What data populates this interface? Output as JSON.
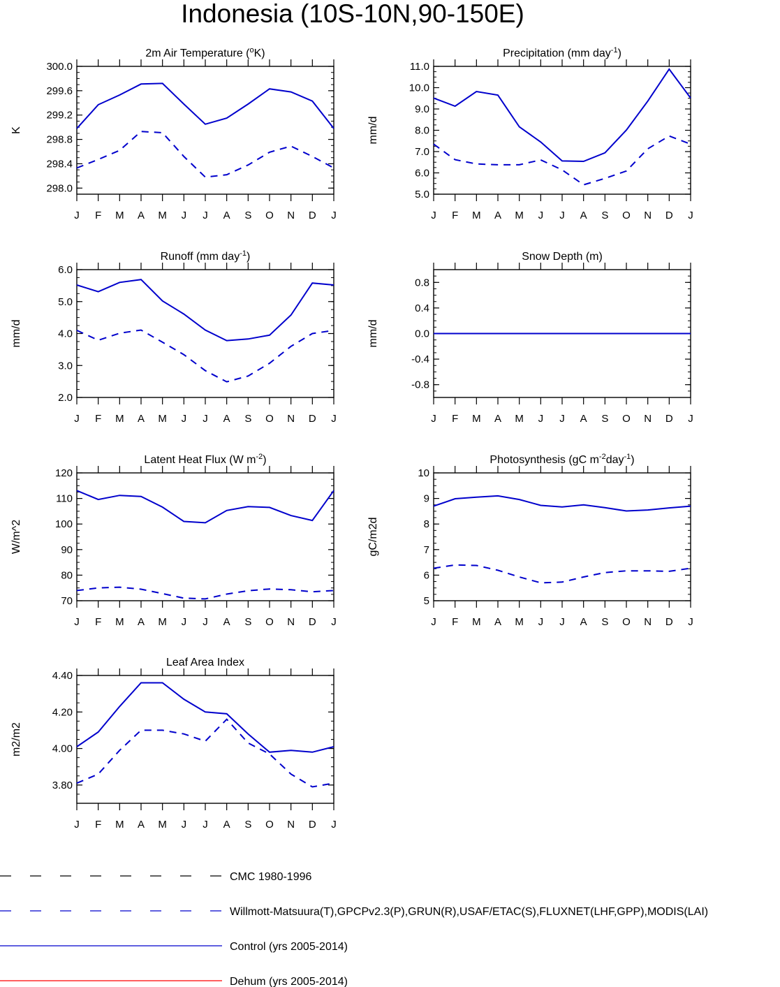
{
  "title": "Indonesia (10S-10N,90-150E)",
  "colors": {
    "axis": "#000000",
    "series": "#0000cc",
    "control": "#0000cc",
    "dehum": "#ff0000",
    "cmc": "#000000"
  },
  "chart_data": [
    {
      "type": "line",
      "title_main": "2m Air Temperature (",
      "title_sup": "o",
      "title_rest": "K)",
      "ylabel": "K",
      "categories": [
        "J",
        "F",
        "M",
        "A",
        "M",
        "J",
        "J",
        "A",
        "S",
        "O",
        "N",
        "D",
        "J"
      ],
      "ylim": [
        297.9,
        300.0
      ],
      "yticks": [
        "298.0",
        "298.4",
        "298.8",
        "299.2",
        "299.6",
        "300.0"
      ],
      "series": [
        {
          "name": "Control (yrs 2005-2014)",
          "style": "solid",
          "values": [
            298.98,
            299.37,
            299.53,
            299.71,
            299.72,
            299.38,
            299.05,
            299.15,
            299.38,
            299.63,
            299.58,
            299.43,
            298.98
          ]
        },
        {
          "name": "Willmott-Matsuura(T)",
          "style": "dashed",
          "values": [
            298.33,
            298.47,
            298.62,
            298.93,
            298.91,
            298.52,
            298.18,
            298.22,
            298.38,
            298.59,
            298.69,
            298.52,
            298.33
          ]
        }
      ]
    },
    {
      "type": "line",
      "title_main": "Precipitation (mm day",
      "title_sup": "-1",
      "title_rest": ")",
      "ylabel": "mm/d",
      "categories": [
        "J",
        "F",
        "M",
        "A",
        "M",
        "J",
        "J",
        "A",
        "S",
        "O",
        "N",
        "D",
        "J"
      ],
      "ylim": [
        5.0,
        11.0
      ],
      "yticks": [
        "5.0",
        "6.0",
        "7.0",
        "8.0",
        "9.0",
        "10.0",
        "11.0"
      ],
      "series": [
        {
          "name": "Control (yrs 2005-2014)",
          "style": "solid",
          "values": [
            9.51,
            9.13,
            9.82,
            9.65,
            8.16,
            7.45,
            6.56,
            6.54,
            6.94,
            8.01,
            9.37,
            10.87,
            9.51
          ]
        },
        {
          "name": "GPCPv2.3(P)",
          "style": "dashed",
          "values": [
            7.35,
            6.62,
            6.42,
            6.38,
            6.38,
            6.61,
            6.14,
            5.44,
            5.74,
            6.09,
            7.13,
            7.73,
            7.35
          ]
        }
      ]
    },
    {
      "type": "line",
      "title_main": "Runoff (mm day",
      "title_sup": "-1",
      "title_rest": ")",
      "ylabel": "mm/d",
      "categories": [
        "J",
        "F",
        "M",
        "A",
        "M",
        "J",
        "J",
        "A",
        "S",
        "O",
        "N",
        "D",
        "J"
      ],
      "ylim": [
        2.0,
        6.0
      ],
      "yticks": [
        "2.0",
        "3.0",
        "4.0",
        "5.0",
        "6.0"
      ],
      "series": [
        {
          "name": "Control (yrs 2005-2014)",
          "style": "solid",
          "values": [
            5.52,
            5.31,
            5.6,
            5.69,
            5.02,
            4.61,
            4.11,
            3.78,
            3.83,
            3.95,
            4.58,
            5.58,
            5.52
          ]
        },
        {
          "name": "GRUN(R)",
          "style": "dashed",
          "values": [
            4.1,
            3.79,
            4.01,
            4.11,
            3.73,
            3.34,
            2.84,
            2.49,
            2.67,
            3.07,
            3.6,
            4.0,
            4.1
          ]
        }
      ]
    },
    {
      "type": "line",
      "title_main": "Snow Depth (m)",
      "title_sup": "",
      "title_rest": "",
      "ylabel": "mm/d",
      "categories": [
        "J",
        "F",
        "M",
        "A",
        "M",
        "J",
        "J",
        "A",
        "S",
        "O",
        "N",
        "D",
        "J"
      ],
      "ylim": [
        -1.0,
        1.0
      ],
      "yticks": [
        "-0.8",
        "-0.4",
        "0.0",
        "0.4",
        "0.8"
      ],
      "series": [
        {
          "name": "Control (yrs 2005-2014)",
          "style": "solid",
          "values": [
            0,
            0,
            0,
            0,
            0,
            0,
            0,
            0,
            0,
            0,
            0,
            0,
            0
          ]
        },
        {
          "name": "USAF/ETAC(S)",
          "style": "dashed",
          "values": [
            0,
            0,
            0,
            0,
            0,
            0,
            0,
            0,
            0,
            0,
            0,
            0,
            0
          ]
        }
      ]
    },
    {
      "type": "line",
      "title_main": "Latent Heat Flux (W m",
      "title_sup": "-2",
      "title_rest": ")",
      "ylabel": "W/m^2",
      "categories": [
        "J",
        "F",
        "M",
        "A",
        "M",
        "J",
        "J",
        "A",
        "S",
        "O",
        "N",
        "D",
        "J"
      ],
      "ylim": [
        70,
        120
      ],
      "yticks": [
        "70",
        "80",
        "90",
        "100",
        "110",
        "120"
      ],
      "series": [
        {
          "name": "Control (yrs 2005-2014)",
          "style": "solid",
          "values": [
            113.1,
            109.6,
            111.2,
            110.8,
            106.6,
            101.0,
            100.5,
            105.3,
            106.8,
            106.5,
            103.3,
            101.4,
            113.1
          ]
        },
        {
          "name": "FLUXNET(LHF)",
          "style": "dashed",
          "values": [
            74.0,
            75.0,
            75.3,
            74.5,
            72.8,
            71.0,
            70.7,
            72.6,
            73.9,
            74.6,
            74.3,
            73.5,
            74.0
          ]
        }
      ]
    },
    {
      "type": "line",
      "title_main": "Photosynthesis (gC m",
      "title_sup": "-2",
      "title_rest": "day",
      "title_sup2": "-1",
      "title_end": ")",
      "ylabel": "gC/m2d",
      "categories": [
        "J",
        "F",
        "M",
        "A",
        "M",
        "J",
        "J",
        "A",
        "S",
        "O",
        "N",
        "D",
        "J"
      ],
      "ylim": [
        5,
        10
      ],
      "yticks": [
        "5",
        "6",
        "7",
        "8",
        "9",
        "10"
      ],
      "series": [
        {
          "name": "Control (yrs 2005-2014)",
          "style": "solid",
          "values": [
            8.7,
            8.99,
            9.05,
            9.1,
            8.96,
            8.73,
            8.67,
            8.75,
            8.64,
            8.51,
            8.55,
            8.63,
            8.7
          ]
        },
        {
          "name": "FLUXNET(GPP)",
          "style": "dashed",
          "values": [
            6.27,
            6.4,
            6.38,
            6.19,
            5.93,
            5.7,
            5.73,
            5.93,
            6.1,
            6.17,
            6.17,
            6.15,
            6.27
          ]
        }
      ]
    },
    {
      "type": "line",
      "title_main": "Leaf Area Index",
      "title_sup": "",
      "title_rest": "",
      "ylabel": "m2/m2",
      "categories": [
        "J",
        "F",
        "M",
        "A",
        "M",
        "J",
        "J",
        "A",
        "S",
        "O",
        "N",
        "D",
        "J"
      ],
      "ylim": [
        3.7,
        4.4
      ],
      "yticks": [
        "3.80",
        "4.00",
        "4.20",
        "4.40"
      ],
      "series": [
        {
          "name": "Control (yrs 2005-2014)",
          "style": "solid",
          "values": [
            4.01,
            4.09,
            4.23,
            4.36,
            4.36,
            4.27,
            4.2,
            4.19,
            4.08,
            3.98,
            3.99,
            3.98,
            4.01
          ]
        },
        {
          "name": "MODIS(LAI)",
          "style": "dashed",
          "values": [
            3.81,
            3.86,
            3.99,
            4.1,
            4.1,
            4.08,
            4.04,
            4.16,
            4.03,
            3.97,
            3.86,
            3.79,
            3.81
          ]
        }
      ]
    }
  ],
  "legend": [
    {
      "label": "CMC 1980-1996",
      "style": "dashed",
      "color": "#000000"
    },
    {
      "label": "Willmott-Matsuura(T),GPCPv2.3(P),GRUN(R),USAF/ETAC(S),FLUXNET(LHF,GPP),MODIS(LAI)",
      "style": "dashed",
      "color": "#0000cc"
    },
    {
      "label": "Control (yrs 2005-2014)",
      "style": "solid",
      "color": "#0000cc"
    },
    {
      "label": "Dehum (yrs 2005-2014)",
      "style": "solid",
      "color": "#ff0000"
    }
  ]
}
